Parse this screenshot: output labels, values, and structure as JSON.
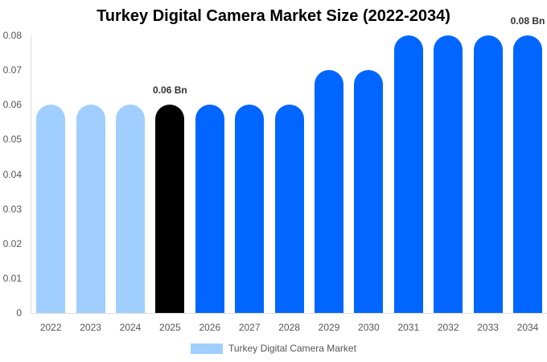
{
  "chart_data": {
    "type": "bar",
    "title": "Turkey Digital Camera Market Size (2022-2034)",
    "xlabel": "",
    "ylabel": "",
    "categories": [
      "2022",
      "2023",
      "2024",
      "2025",
      "2026",
      "2027",
      "2028",
      "2029",
      "2030",
      "2031",
      "2032",
      "2033",
      "2034"
    ],
    "series": [
      {
        "name": "Turkey Digital Camera Market",
        "values": [
          0.06,
          0.06,
          0.06,
          0.06,
          0.06,
          0.06,
          0.06,
          0.07,
          0.07,
          0.08,
          0.08,
          0.08,
          0.08
        ]
      }
    ],
    "bar_colors": [
      "#a0cfff",
      "#a0cfff",
      "#a0cfff",
      "#000000",
      "#0066ff",
      "#0066ff",
      "#0066ff",
      "#0066ff",
      "#0066ff",
      "#0066ff",
      "#0066ff",
      "#0066ff",
      "#0066ff"
    ],
    "annotations": [
      {
        "category": "2025",
        "text": "0.06 Bn"
      },
      {
        "category": "2034",
        "text": "0.08 Bn"
      }
    ],
    "ylim": [
      0,
      0.08
    ],
    "yticks": [
      "0",
      "0.01",
      "0.02",
      "0.03",
      "0.04",
      "0.05",
      "0.06",
      "0.07",
      "0.08"
    ],
    "grid": false,
    "legend_position": "bottom"
  },
  "legend": {
    "label": "Turkey Digital Camera Market",
    "color": "#a0cfff"
  }
}
